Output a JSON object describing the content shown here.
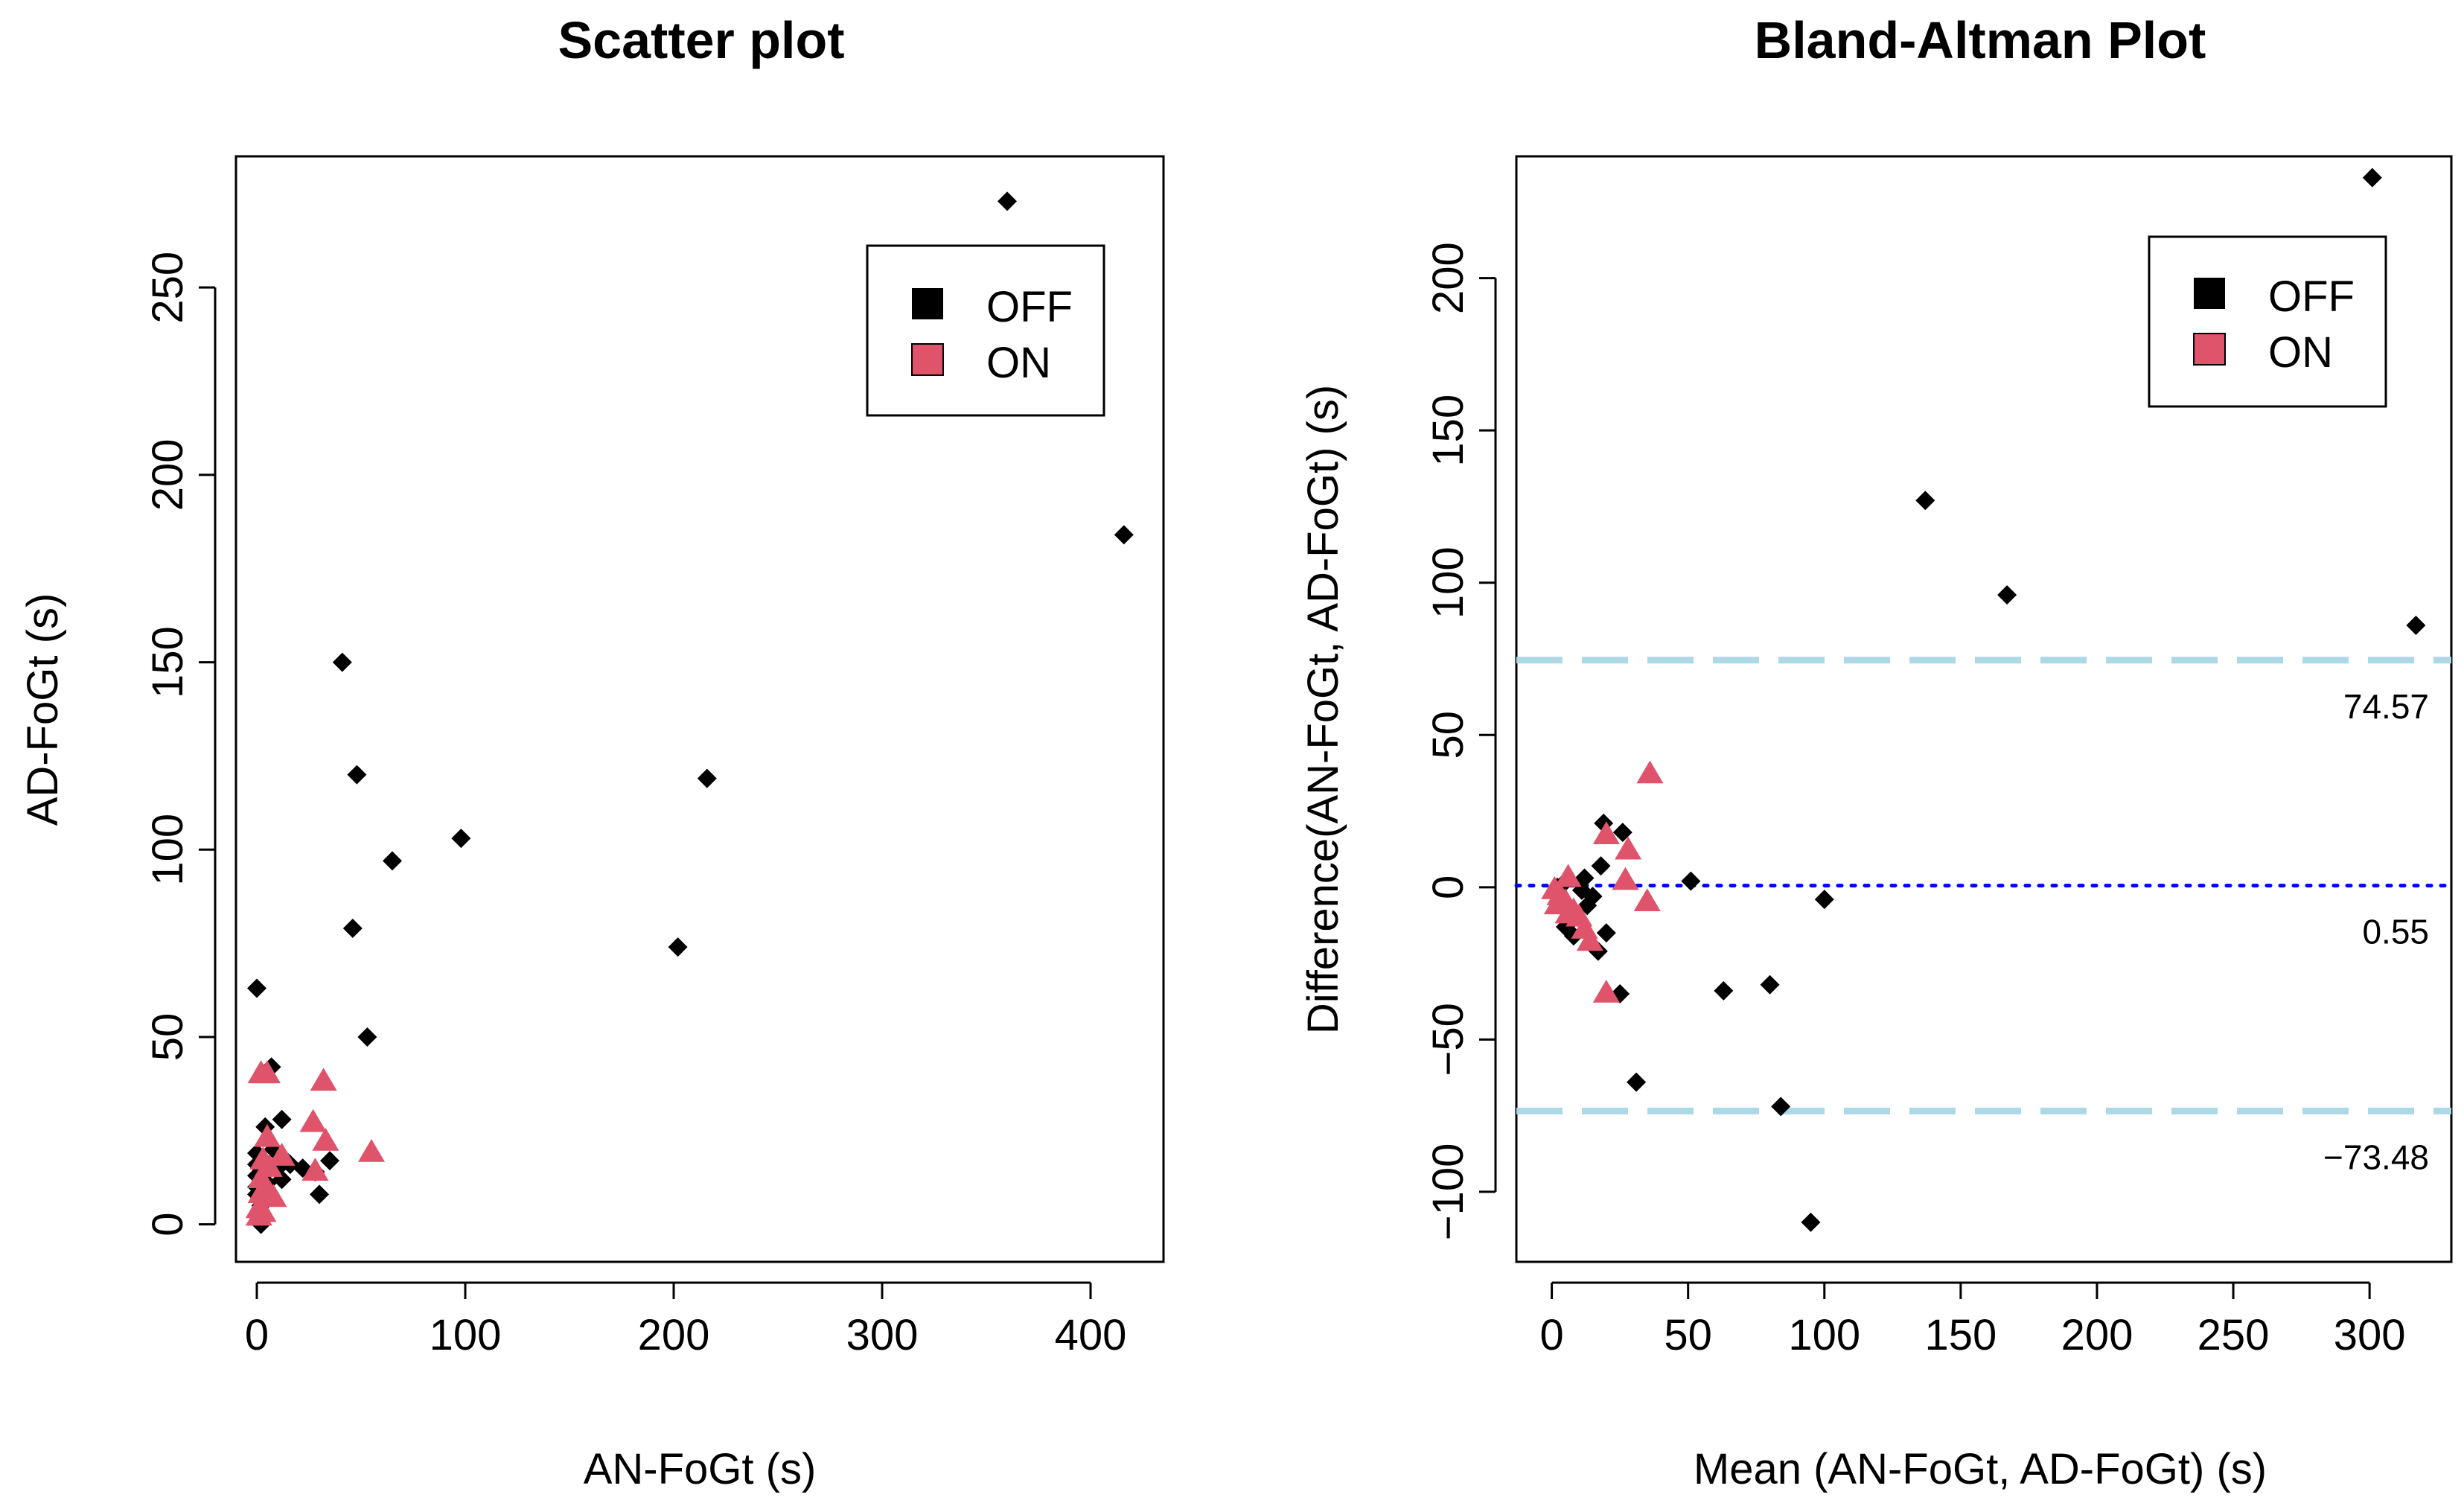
{
  "colors": {
    "OFF": "#000000",
    "ON": "#DF536B",
    "loa_line": "#ADD8E6",
    "mean_line": "#0000FF"
  },
  "chart_data": [
    {
      "type": "scatter",
      "title": "Scatter plot",
      "xlabel": "AN-FoGt (s)",
      "ylabel": "AD-FoGt (s)",
      "xlim": [
        -10,
        435
      ],
      "ylim": [
        -10,
        285
      ],
      "xticks": [
        0,
        100,
        200,
        300,
        400
      ],
      "yticks": [
        0,
        50,
        100,
        150,
        200,
        250
      ],
      "legend": {
        "position": "top-right",
        "entries": [
          "OFF",
          "ON"
        ]
      },
      "series": [
        {
          "name": "OFF",
          "marker": "diamond",
          "points": [
            [
              360,
              273
            ],
            [
              416,
              184
            ],
            [
              41,
              150
            ],
            [
              48,
              120
            ],
            [
              216,
              119
            ],
            [
              98,
              103
            ],
            [
              65,
              97
            ],
            [
              46,
              79
            ],
            [
              202,
              74
            ],
            [
              0,
              63
            ],
            [
              53,
              50
            ],
            [
              7,
              42
            ],
            [
              12,
              28
            ],
            [
              4,
              26
            ],
            [
              0,
              19
            ],
            [
              0,
              16
            ],
            [
              0,
              13
            ],
            [
              0,
              10
            ],
            [
              0,
              8
            ],
            [
              2,
              5
            ],
            [
              1,
              2
            ],
            [
              2,
              0
            ],
            [
              5,
              11
            ],
            [
              10,
              15
            ],
            [
              12,
              12
            ],
            [
              16,
              16
            ],
            [
              22,
              15
            ],
            [
              30,
              8
            ],
            [
              35,
              17
            ],
            [
              28,
              14
            ],
            [
              14,
              17
            ],
            [
              8,
              20
            ]
          ]
        },
        {
          "name": "ON",
          "marker": "triangle",
          "points": [
            [
              2,
              40
            ],
            [
              5,
              40
            ],
            [
              32,
              38
            ],
            [
              27,
              27
            ],
            [
              33,
              22
            ],
            [
              5,
              23
            ],
            [
              3,
              17
            ],
            [
              6,
              15
            ],
            [
              12,
              18
            ],
            [
              55,
              19
            ],
            [
              28,
              14
            ],
            [
              2,
              12
            ],
            [
              2,
              8
            ],
            [
              5,
              8
            ],
            [
              8,
              7
            ],
            [
              1,
              4
            ],
            [
              3,
              3
            ],
            [
              1,
              2
            ]
          ]
        }
      ]
    },
    {
      "type": "scatter",
      "title": "Bland-Altman Plot",
      "xlabel": "Mean (AN-FoGt, AD-FoGt) (s)",
      "ylabel": "Difference(AN-FoGt, AD-FoGt) (s)",
      "xlim": [
        -13,
        330
      ],
      "ylim": [
        -123,
        240
      ],
      "xticks": [
        0,
        50,
        100,
        150,
        200,
        250,
        300
      ],
      "yticks": [
        -100,
        -50,
        0,
        50,
        100,
        150,
        200
      ],
      "legend": {
        "position": "top-right",
        "entries": [
          "OFF",
          "ON"
        ]
      },
      "reference_lines": [
        {
          "name": "upper-loa",
          "y": 74.57,
          "label": "74.57",
          "style": "dashed",
          "color": "#ADD8E6"
        },
        {
          "name": "mean-diff",
          "y": 0.55,
          "label": "0.55",
          "style": "dotted",
          "color": "#0000FF"
        },
        {
          "name": "lower-loa",
          "y": -73.48,
          "label": "-73.48",
          "style": "dashed",
          "color": "#ADD8E6"
        }
      ],
      "series": [
        {
          "name": "OFF",
          "marker": "diamond",
          "points": [
            [
              301,
              233
            ],
            [
              137,
              127
            ],
            [
              167,
              96
            ],
            [
              317,
              86
            ],
            [
              51,
              2
            ],
            [
              100,
              -4
            ],
            [
              19,
              21
            ],
            [
              26,
              18
            ],
            [
              18,
              7
            ],
            [
              12,
              3
            ],
            [
              15,
              -3
            ],
            [
              6,
              -8
            ],
            [
              5,
              -13
            ],
            [
              8,
              -16
            ],
            [
              17,
              -21
            ],
            [
              20,
              -15
            ],
            [
              25,
              -35
            ],
            [
              31,
              -64
            ],
            [
              63,
              -34
            ],
            [
              80,
              -32
            ],
            [
              84,
              -72
            ],
            [
              95,
              -110
            ],
            [
              2,
              0
            ],
            [
              3,
              -4
            ],
            [
              7,
              -10
            ],
            [
              11,
              -1
            ],
            [
              13,
              -6
            ],
            [
              4,
              1
            ]
          ]
        },
        {
          "name": "ON",
          "marker": "triangle",
          "points": [
            [
              36,
              37
            ],
            [
              20,
              17
            ],
            [
              28,
              12
            ],
            [
              6,
              3
            ],
            [
              27,
              2
            ],
            [
              35,
              -5
            ],
            [
              1,
              -1
            ],
            [
              3,
              -3
            ],
            [
              5,
              -5
            ],
            [
              8,
              -8
            ],
            [
              10,
              -10
            ],
            [
              12,
              -14
            ],
            [
              14,
              -18
            ],
            [
              20,
              -35
            ],
            [
              2,
              -6
            ],
            [
              6,
              -9
            ]
          ]
        }
      ]
    }
  ]
}
